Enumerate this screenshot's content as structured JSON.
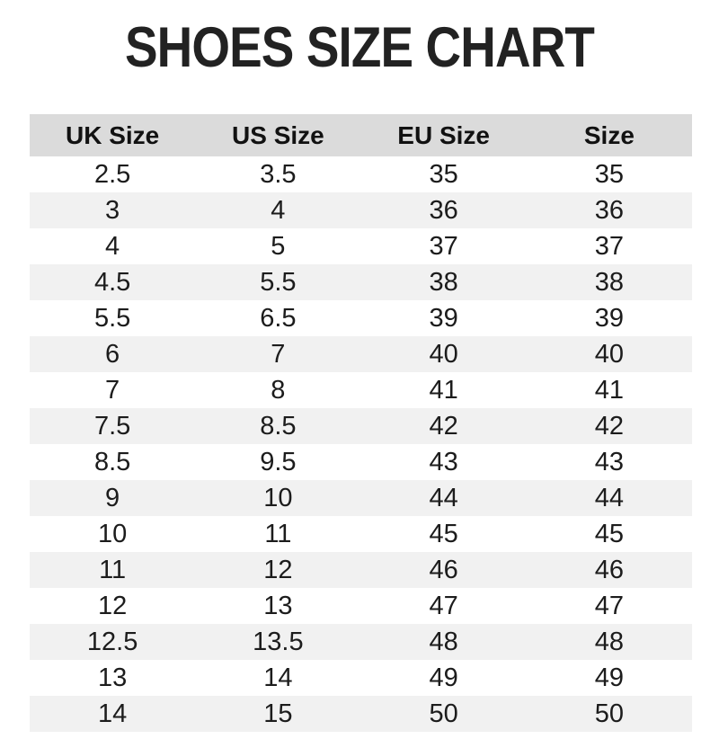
{
  "title": "SHOES SIZE CHART",
  "chart_data": {
    "type": "table",
    "title": "SHOES SIZE CHART",
    "columns": [
      "UK Size",
      "US Size",
      "EU Size",
      "Size"
    ],
    "rows": [
      [
        "2.5",
        "3.5",
        "35",
        "35"
      ],
      [
        "3",
        "4",
        "36",
        "36"
      ],
      [
        "4",
        "5",
        "37",
        "37"
      ],
      [
        "4.5",
        "5.5",
        "38",
        "38"
      ],
      [
        "5.5",
        "6.5",
        "39",
        "39"
      ],
      [
        "6",
        "7",
        "40",
        "40"
      ],
      [
        "7",
        "8",
        "41",
        "41"
      ],
      [
        "7.5",
        "8.5",
        "42",
        "42"
      ],
      [
        "8.5",
        "9.5",
        "43",
        "43"
      ],
      [
        "9",
        "10",
        "44",
        "44"
      ],
      [
        "10",
        "11",
        "45",
        "45"
      ],
      [
        "11",
        "12",
        "46",
        "46"
      ],
      [
        "12",
        "13",
        "47",
        "47"
      ],
      [
        "12.5",
        "13.5",
        "48",
        "48"
      ],
      [
        "13",
        "14",
        "49",
        "49"
      ],
      [
        "14",
        "15",
        "50",
        "50"
      ]
    ],
    "legend": "none",
    "grid": "off"
  },
  "colors": {
    "title_color": "#222222",
    "header_bg": "#dbdbdb",
    "row_alt_bg": "#f1f1f1",
    "row_bg": "#ffffff",
    "text_color": "#1c1c1c"
  }
}
